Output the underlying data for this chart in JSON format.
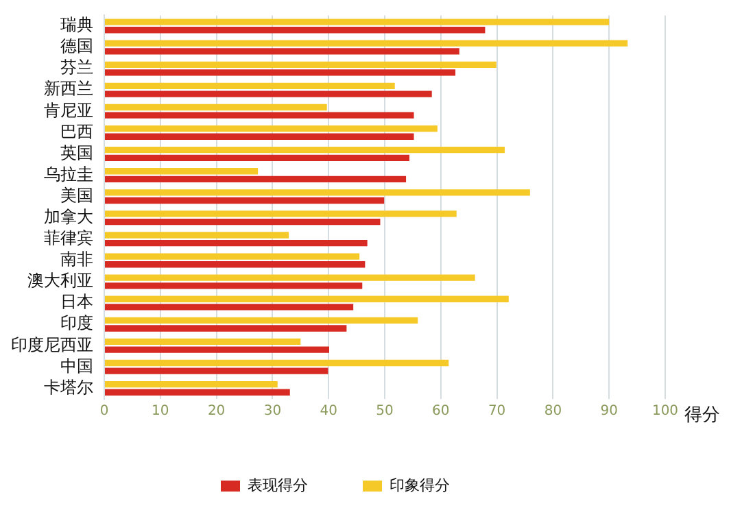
{
  "chart_data": {
    "type": "bar",
    "orientation": "horizontal",
    "categories": [
      "瑞典",
      "德国",
      "芬兰",
      "新西兰",
      "肯尼亚",
      "巴西",
      "英国",
      "乌拉圭",
      "美国",
      "加拿大",
      "菲律宾",
      "南非",
      "澳大利亚",
      "日本",
      "印度",
      "印度尼西亚",
      "中国",
      "卡塔尔"
    ],
    "series": [
      {
        "name": "印象得分",
        "color": "#f5c928",
        "values": [
          90,
          93.3,
          69.9,
          51.8,
          39.7,
          59.4,
          71.4,
          27.4,
          75.9,
          62.8,
          32.9,
          45.5,
          66.1,
          72.1,
          55.9,
          35.0,
          61.4,
          30.9
        ]
      },
      {
        "name": "表现得分",
        "color": "#d62a22",
        "values": [
          67.9,
          63.3,
          62.6,
          58.4,
          55.2,
          55.2,
          54.4,
          53.8,
          49.9,
          49.2,
          46.9,
          46.5,
          46.0,
          44.4,
          43.2,
          40.1,
          39.9,
          33.1
        ]
      }
    ],
    "xlabel": "得分",
    "xlim": [
      0,
      100
    ],
    "xticks": [
      0,
      10,
      20,
      30,
      40,
      50,
      60,
      70,
      80,
      90,
      100
    ],
    "grid": "x",
    "legend": "bottom"
  }
}
